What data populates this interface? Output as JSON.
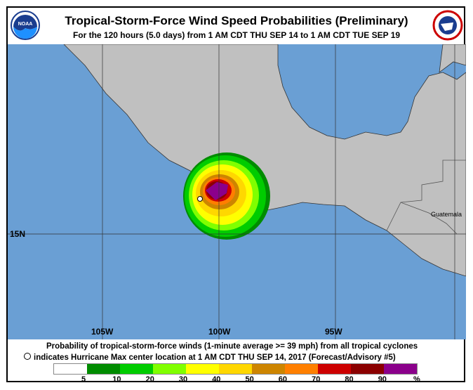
{
  "header": {
    "title": "Tropical-Storm-Force Wind Speed Probabilities (Preliminary)",
    "subtitle": "For the 120 hours (5.0 days) from 1 AM CDT THU SEP 14 to 1 AM CDT TUE SEP 19",
    "logo_left": "NOAA",
    "logo_right": "NATIONAL WEATHER SERVICE"
  },
  "map": {
    "ocean_color": "#6a9fd4",
    "land_color": "#c0c0c0",
    "lon_labels": [
      "105W",
      "100W",
      "95W"
    ],
    "lat_labels": [
      "15N"
    ],
    "country_label": "Guatemala"
  },
  "caption": {
    "line1": "Probability of tropical-storm-force winds (1-minute average >= 39 mph) from all tropical cyclones",
    "line2": "indicates Hurricane Max center location at 1 AM CDT THU SEP 14, 2017 (Forecast/Advisory #5)"
  },
  "legend": {
    "colors": [
      "#ffffff",
      "#008c00",
      "#00cc00",
      "#80ff00",
      "#ffff00",
      "#ffd700",
      "#cd8500",
      "#ff7f00",
      "#cd0000",
      "#8b0000",
      "#8b008b"
    ],
    "ticks": [
      "5",
      "10",
      "20",
      "30",
      "40",
      "50",
      "60",
      "70",
      "80",
      "90",
      "%"
    ]
  }
}
